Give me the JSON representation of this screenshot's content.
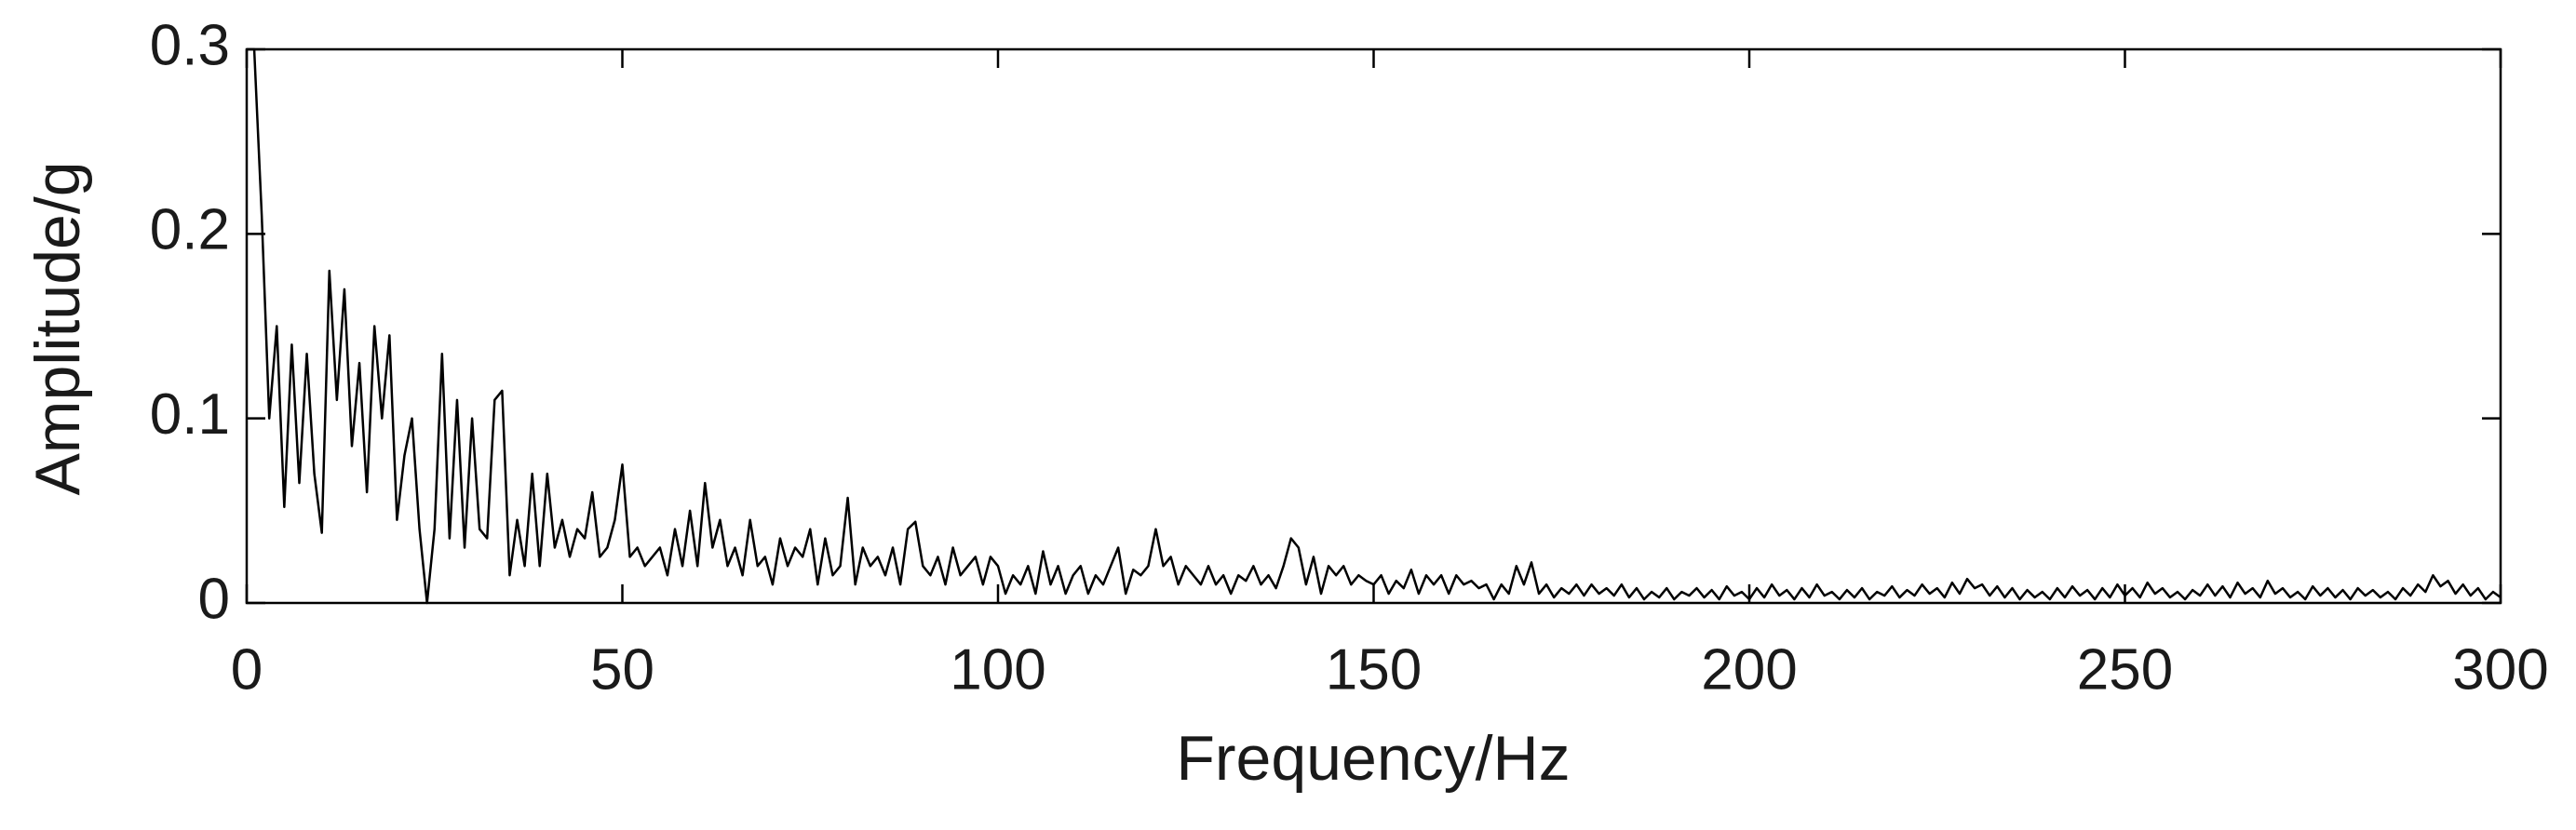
{
  "chart_data": {
    "type": "line",
    "xlabel": "Frequency/Hz",
    "ylabel": "Amplitude/g",
    "color": "#000000",
    "xlim": [
      0,
      300
    ],
    "ylim": [
      0,
      0.3
    ],
    "xticks": [
      0,
      50,
      100,
      150,
      200,
      250,
      300
    ],
    "yticks": [
      0,
      0.1,
      0.2,
      0.3
    ],
    "grid": false,
    "x": [
      0,
      1,
      2,
      3,
      4,
      5,
      6,
      7,
      8,
      9,
      10,
      11,
      12,
      13,
      14,
      15,
      16,
      17,
      18,
      19,
      20,
      21,
      22,
      23,
      24,
      25,
      26,
      27,
      28,
      29,
      30,
      31,
      32,
      33,
      34,
      35,
      36,
      37,
      38,
      39,
      40,
      41,
      42,
      43,
      44,
      45,
      46,
      47,
      48,
      49,
      50,
      51,
      52,
      53,
      54,
      55,
      56,
      57,
      58,
      59,
      60,
      61,
      62,
      63,
      64,
      65,
      66,
      67,
      68,
      69,
      70,
      71,
      72,
      73,
      74,
      75,
      76,
      77,
      78,
      79,
      80,
      81,
      82,
      83,
      84,
      85,
      86,
      87,
      88,
      89,
      90,
      91,
      92,
      93,
      94,
      95,
      96,
      97,
      98,
      99,
      100,
      101,
      102,
      103,
      104,
      105,
      106,
      107,
      108,
      109,
      110,
      111,
      112,
      113,
      114,
      115,
      116,
      117,
      118,
      119,
      120,
      121,
      122,
      123,
      124,
      125,
      126,
      127,
      128,
      129,
      130,
      131,
      132,
      133,
      134,
      135,
      136,
      137,
      138,
      139,
      140,
      141,
      142,
      143,
      144,
      145,
      146,
      147,
      148,
      149,
      150,
      151,
      152,
      153,
      154,
      155,
      156,
      157,
      158,
      159,
      160,
      161,
      162,
      163,
      164,
      165,
      166,
      167,
      168,
      169,
      170,
      171,
      172,
      173,
      174,
      175,
      176,
      177,
      178,
      179,
      180,
      181,
      182,
      183,
      184,
      185,
      186,
      187,
      188,
      189,
      190,
      191,
      192,
      193,
      194,
      195,
      196,
      197,
      198,
      199,
      200,
      201,
      202,
      203,
      204,
      205,
      206,
      207,
      208,
      209,
      210,
      211,
      212,
      213,
      214,
      215,
      216,
      217,
      218,
      219,
      220,
      221,
      222,
      223,
      224,
      225,
      226,
      227,
      228,
      229,
      230,
      231,
      232,
      233,
      234,
      235,
      236,
      237,
      238,
      239,
      240,
      241,
      242,
      243,
      244,
      245,
      246,
      247,
      248,
      249,
      250,
      251,
      252,
      253,
      254,
      255,
      256,
      257,
      258,
      259,
      260,
      261,
      262,
      263,
      264,
      265,
      266,
      267,
      268,
      269,
      270,
      271,
      272,
      273,
      274,
      275,
      276,
      277,
      278,
      279,
      280,
      281,
      282,
      283,
      284,
      285,
      286,
      287,
      288,
      289,
      290,
      291,
      292,
      293,
      294,
      295,
      296,
      297,
      298,
      299,
      300
    ],
    "values": [
      0.3,
      0.3,
      0.21,
      0.1,
      0.15,
      0.052,
      0.14,
      0.065,
      0.135,
      0.07,
      0.038,
      0.18,
      0.11,
      0.17,
      0.085,
      0.13,
      0.06,
      0.15,
      0.1,
      0.145,
      0.045,
      0.08,
      0.1,
      0.04,
      0.0,
      0.04,
      0.135,
      0.035,
      0.11,
      0.03,
      0.1,
      0.04,
      0.035,
      0.11,
      0.115,
      0.015,
      0.045,
      0.02,
      0.07,
      0.02,
      0.07,
      0.03,
      0.045,
      0.025,
      0.04,
      0.035,
      0.06,
      0.025,
      0.03,
      0.045,
      0.075,
      0.025,
      0.03,
      0.02,
      0.025,
      0.03,
      0.015,
      0.04,
      0.02,
      0.05,
      0.02,
      0.065,
      0.03,
      0.045,
      0.02,
      0.03,
      0.015,
      0.045,
      0.02,
      0.025,
      0.01,
      0.035,
      0.02,
      0.03,
      0.025,
      0.04,
      0.01,
      0.035,
      0.015,
      0.02,
      0.057,
      0.01,
      0.03,
      0.02,
      0.025,
      0.015,
      0.03,
      0.01,
      0.04,
      0.044,
      0.02,
      0.015,
      0.025,
      0.01,
      0.03,
      0.015,
      0.02,
      0.025,
      0.01,
      0.025,
      0.02,
      0.005,
      0.015,
      0.01,
      0.02,
      0.005,
      0.028,
      0.01,
      0.02,
      0.005,
      0.015,
      0.02,
      0.005,
      0.015,
      0.01,
      0.02,
      0.03,
      0.005,
      0.018,
      0.015,
      0.02,
      0.04,
      0.02,
      0.025,
      0.01,
      0.02,
      0.015,
      0.01,
      0.02,
      0.01,
      0.015,
      0.005,
      0.015,
      0.012,
      0.02,
      0.01,
      0.015,
      0.008,
      0.02,
      0.035,
      0.03,
      0.01,
      0.025,
      0.005,
      0.02,
      0.015,
      0.02,
      0.01,
      0.015,
      0.012,
      0.01,
      0.015,
      0.005,
      0.012,
      0.008,
      0.018,
      0.005,
      0.015,
      0.01,
      0.015,
      0.005,
      0.015,
      0.01,
      0.012,
      0.008,
      0.01,
      0.002,
      0.01,
      0.005,
      0.02,
      0.01,
      0.022,
      0.005,
      0.01,
      0.003,
      0.008,
      0.005,
      0.01,
      0.004,
      0.01,
      0.005,
      0.008,
      0.004,
      0.01,
      0.003,
      0.008,
      0.002,
      0.006,
      0.003,
      0.008,
      0.002,
      0.006,
      0.004,
      0.008,
      0.003,
      0.007,
      0.002,
      0.009,
      0.004,
      0.006,
      0.002,
      0.008,
      0.003,
      0.01,
      0.004,
      0.007,
      0.002,
      0.008,
      0.003,
      0.01,
      0.004,
      0.006,
      0.002,
      0.007,
      0.003,
      0.008,
      0.002,
      0.006,
      0.004,
      0.009,
      0.003,
      0.007,
      0.004,
      0.01,
      0.005,
      0.008,
      0.003,
      0.011,
      0.005,
      0.013,
      0.008,
      0.01,
      0.004,
      0.009,
      0.003,
      0.008,
      0.002,
      0.007,
      0.003,
      0.006,
      0.002,
      0.008,
      0.003,
      0.009,
      0.004,
      0.007,
      0.002,
      0.008,
      0.003,
      0.01,
      0.004,
      0.008,
      0.003,
      0.011,
      0.005,
      0.008,
      0.003,
      0.006,
      0.002,
      0.007,
      0.004,
      0.01,
      0.004,
      0.009,
      0.003,
      0.011,
      0.005,
      0.008,
      0.003,
      0.012,
      0.005,
      0.008,
      0.003,
      0.006,
      0.002,
      0.009,
      0.004,
      0.008,
      0.003,
      0.007,
      0.002,
      0.008,
      0.004,
      0.007,
      0.003,
      0.006,
      0.002,
      0.008,
      0.004,
      0.01,
      0.006,
      0.015,
      0.009,
      0.012,
      0.005,
      0.01,
      0.004,
      0.008,
      0.002,
      0.006,
      0.003
    ]
  }
}
